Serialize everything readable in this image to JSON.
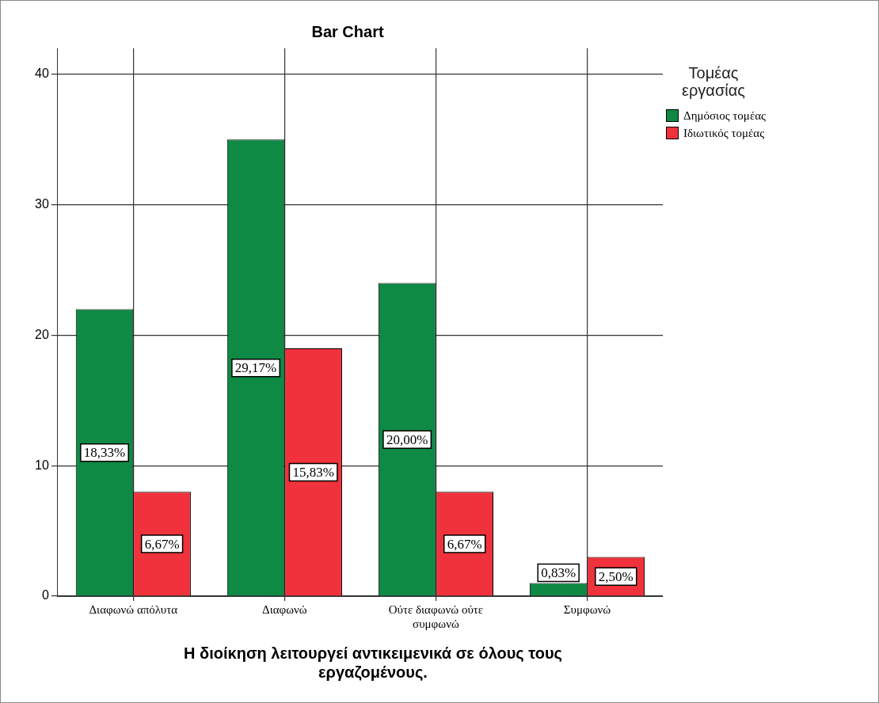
{
  "chart_data": {
    "type": "bar",
    "title": "Bar Chart",
    "xlabel": "Η διοίκηση λειτουργεί αντικειμενικά σε όλους τους εργαζομένους.",
    "legend_title": "Τομέας εργασίας",
    "categories": [
      "Διαφωνώ απόλυτα",
      "Διαφωνώ",
      "Ούτε διαφωνώ ούτε συμφωνώ",
      "Συμφωνώ"
    ],
    "series": [
      {
        "name": "Δημόσιος τομέας",
        "color": "#0e8a45",
        "values": [
          22,
          35,
          24,
          1
        ]
      },
      {
        "name": "Ιδιωτικός τομέας",
        "color": "#ef323b",
        "values": [
          8,
          19,
          8,
          3
        ]
      }
    ],
    "annotations": [
      {
        "text": "18,33%",
        "x": "Διαφωνώ απόλυτα",
        "y": 11
      },
      {
        "text": "29,17%",
        "x": "Διαφωνώ",
        "y": 17.5
      },
      {
        "text": "20,00%",
        "x": "Ούτε διαφωνώ ούτε συμφωνώ",
        "y": 12
      },
      {
        "text": "0,83%",
        "x": "Συμφωνώ",
        "y": 0.5
      },
      {
        "text": "6,67%",
        "x": "Διαφωνώ απόλυτα",
        "y": 4
      },
      {
        "text": "15,83%",
        "x": "Διαφωνώ",
        "y": 9.5
      },
      {
        "text": "6,67%",
        "x": "Ούτε διαφωνώ ούτε συμφωνώ",
        "y": 4
      },
      {
        "text": "2,50%",
        "x": "Συμφωνώ",
        "y": 1.5
      }
    ],
    "ylim": [
      0,
      42
    ],
    "yticks": [
      0,
      10,
      20,
      30,
      40
    ],
    "grid": true,
    "legend": "top right"
  }
}
